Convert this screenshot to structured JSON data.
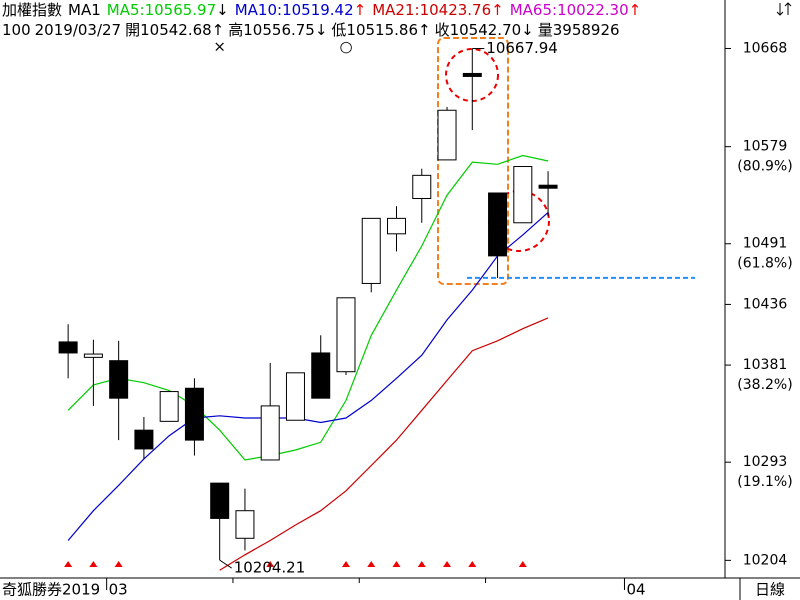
{
  "chart_data": {
    "type": "candlestick",
    "header": {
      "name": "加權指數",
      "mode": "MA1",
      "legend": [
        {
          "text": "MA5:10565.97",
          "arrow": "↓",
          "color": "#00cc00"
        },
        {
          "text": "MA10:10519.42",
          "arrow": "↑",
          "color": "#0000cc"
        },
        {
          "text": "MA21:10423.76",
          "arrow": "↑",
          "color": "#cc0000"
        },
        {
          "text": "MA65:10022.30",
          "arrow": "↑",
          "color": "#cc00cc"
        }
      ],
      "info": [
        "100",
        "2019/03/27",
        "開10542.68↑",
        "高10556.75↓",
        "低10515.86↑",
        "收10542.70↓",
        "量3958926"
      ]
    },
    "open": [
      10402,
      10388,
      10385,
      10322,
      10330,
      10360,
      10274,
      10224,
      10295,
      10331,
      10392,
      10375,
      10455,
      10500,
      10532,
      10567,
      10644,
      10537,
      10510,
      10542.68
    ],
    "high": [
      10418,
      10404,
      10403,
      10334,
      10357,
      10369,
      10274,
      10269,
      10383,
      10374,
      10408,
      10442,
      10514,
      10525,
      10559,
      10615,
      10667.94,
      10537,
      10561,
      10556.75
    ],
    "low": [
      10369,
      10344,
      10313,
      10296,
      10330,
      10299,
      10204.21,
      10213,
      10295,
      10331,
      10351,
      10372,
      10447,
      10484,
      10510,
      10567,
      10594,
      10460,
      10510,
      10515.86
    ],
    "close": [
      10392,
      10391,
      10351,
      10305,
      10357,
      10313,
      10242,
      10249,
      10344,
      10374,
      10351,
      10442,
      10514,
      10514,
      10553,
      10612,
      10644,
      10480,
      10561,
      10542.7
    ],
    "series": [
      {
        "name": "MA5",
        "color": "#00cc00",
        "values": [
          10340,
          10363,
          10369,
          10365,
          10358,
          10344,
          10322,
          10295,
          10299,
          10304,
          10311,
          10349,
          10408,
          10449,
          10489,
          10535,
          10565,
          10563,
          10571,
          10565.97
        ]
      },
      {
        "name": "MA10",
        "color": "#0000cc",
        "values": [
          10222,
          10249,
          10272,
          10296,
          10317,
          10333,
          10335,
          10333,
          10333,
          10333,
          10329,
          10333,
          10349,
          10369,
          10390,
          10422,
          10449,
          10480,
          10499,
          10519.42
        ]
      },
      {
        "name": "MA21",
        "color": "#cc0000",
        "values": [
          null,
          null,
          null,
          null,
          null,
          null,
          10195,
          10209,
          10222,
          10236,
          10249,
          10267,
          10290,
          10313,
          10340,
          10367,
          10394,
          10403,
          10414,
          10423.76
        ]
      }
    ],
    "signals": [
      true,
      true,
      true,
      false,
      false,
      false,
      false,
      false,
      true,
      false,
      false,
      true,
      true,
      true,
      true,
      true,
      true,
      false,
      true,
      false
    ],
    "annotations": [
      {
        "text": "10667.94",
        "index": 16,
        "price": 10667.94
      },
      {
        "text": "10204.21",
        "index": 6,
        "price": 10204.21
      }
    ],
    "top_marks": [
      {
        "text": "×",
        "index": 6
      },
      {
        "text": "○",
        "index": 11
      }
    ],
    "support_level": 10460,
    "ylim": [
      10188,
      10692
    ],
    "yticks": [
      10668,
      10579,
      10491,
      10436,
      10381,
      10293,
      10204
    ],
    "fib_levels": [
      {
        "value": 10579,
        "label": "(80.9%)"
      },
      {
        "value": 10491,
        "label": "(61.8%)"
      },
      {
        "value": 10381,
        "label": "(38.2%)"
      },
      {
        "value": 10293,
        "label": "(19.1%)"
      }
    ],
    "footer": {
      "brand": "奇狐勝券2019",
      "months": [
        {
          "text": "03",
          "index": 2
        },
        {
          "text": "04",
          "index": 22.5
        }
      ],
      "period": "日線"
    }
  }
}
